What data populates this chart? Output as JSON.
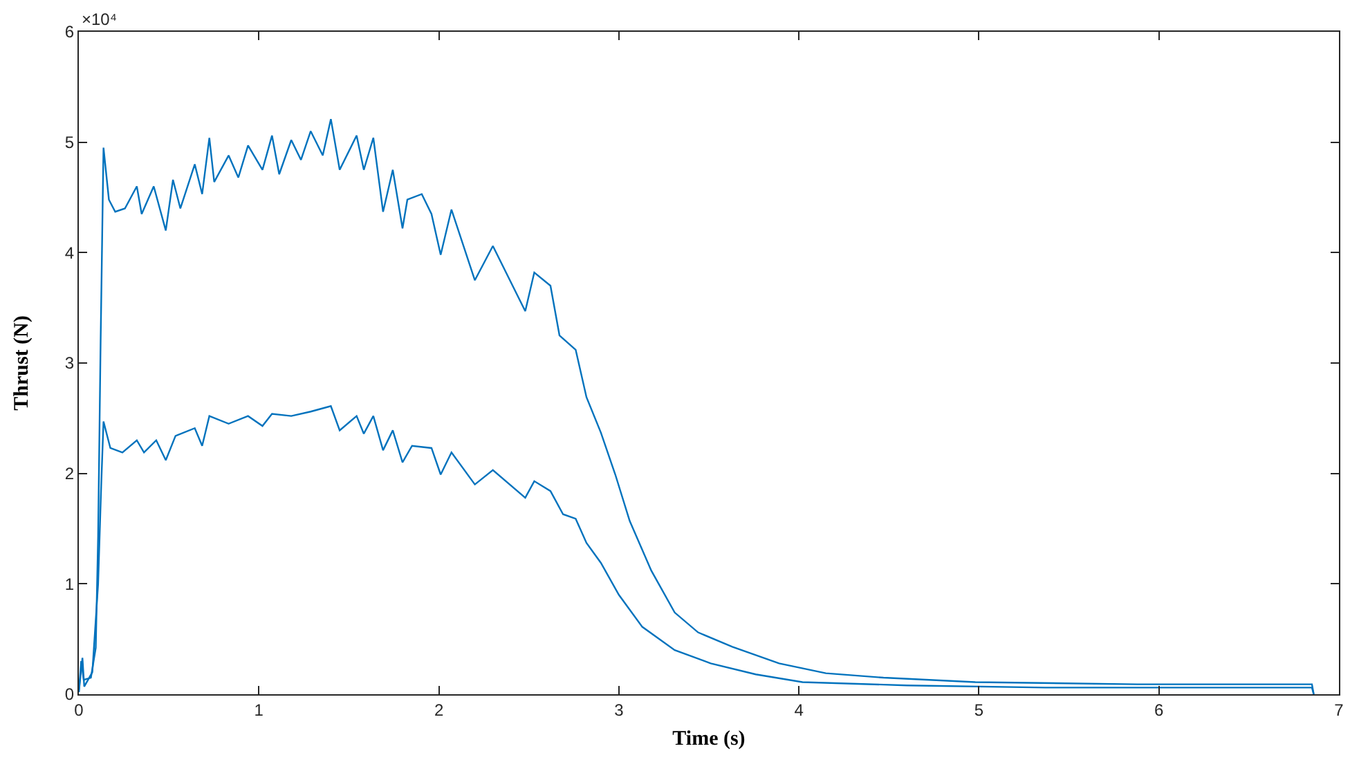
{
  "chart_data": {
    "type": "line",
    "xlabel": "Time (s)",
    "ylabel": "Thrust (N)",
    "annotations": [
      "×10⁴"
    ],
    "xlim": [
      0,
      7
    ],
    "xticks": [
      0,
      1,
      2,
      3,
      4,
      5,
      6,
      7
    ],
    "ylim": [
      0,
      6
    ],
    "yticks": [
      0,
      1,
      2,
      3,
      4,
      5,
      6
    ],
    "grid": false,
    "marker": "none",
    "line_style": "solid",
    "series": [
      {
        "color": "#0072bd",
        "x": [
          0,
          0.013,
          0.027,
          0.067,
          0.094,
          0.107,
          0.121,
          0.137,
          0.167,
          0.202,
          0.256,
          0.322,
          0.349,
          0.416,
          0.483,
          0.523,
          0.564,
          0.644,
          0.685,
          0.725,
          0.752,
          0.832,
          0.886,
          0.94,
          1.02,
          1.073,
          1.113,
          1.18,
          1.234,
          1.288,
          1.355,
          1.4,
          1.449,
          1.543,
          1.583,
          1.636,
          1.69,
          1.744,
          1.798,
          1.825,
          1.905,
          1.959,
          2.01,
          2.07,
          2.2,
          2.3,
          2.48,
          2.53,
          2.62,
          2.67,
          2.76,
          2.82,
          2.9,
          2.98,
          3.06,
          3.18,
          3.31,
          3.44,
          3.63,
          3.89,
          4.15,
          4.47,
          4.98,
          5.88,
          6.85,
          6.86
        ],
        "values": [
          0.02,
          0.3,
          0.13,
          0.15,
          0.42,
          1.43,
          3.2,
          4.95,
          4.48,
          4.37,
          4.4,
          4.6,
          4.35,
          4.6,
          4.2,
          4.66,
          4.4,
          4.8,
          4.53,
          5.04,
          4.64,
          4.88,
          4.68,
          4.97,
          4.75,
          5.06,
          4.71,
          5.02,
          4.84,
          5.1,
          4.88,
          5.21,
          4.75,
          5.06,
          4.75,
          5.04,
          4.37,
          4.75,
          4.22,
          4.48,
          4.53,
          4.35,
          3.98,
          4.39,
          3.75,
          4.06,
          3.47,
          3.82,
          3.7,
          3.25,
          3.12,
          2.69,
          2.37,
          1.99,
          1.57,
          1.12,
          0.74,
          0.56,
          0.43,
          0.28,
          0.19,
          0.15,
          0.11,
          0.09,
          0.09,
          0
        ]
      },
      {
        "color": "#0072bd",
        "x": [
          0,
          0.02,
          0.03,
          0.075,
          0.107,
          0.124,
          0.137,
          0.175,
          0.242,
          0.322,
          0.362,
          0.43,
          0.483,
          0.537,
          0.644,
          0.685,
          0.725,
          0.832,
          0.94,
          1.02,
          1.073,
          1.18,
          1.288,
          1.4,
          1.449,
          1.543,
          1.583,
          1.636,
          1.69,
          1.744,
          1.798,
          1.851,
          1.959,
          2.01,
          2.07,
          2.2,
          2.3,
          2.48,
          2.53,
          2.62,
          2.69,
          2.76,
          2.82,
          2.9,
          3.0,
          3.13,
          3.31,
          3.51,
          3.76,
          4.02,
          4.6,
          5.37,
          6.85,
          6.86
        ],
        "values": [
          0.02,
          0.33,
          0.07,
          0.2,
          1.0,
          1.88,
          2.47,
          2.23,
          2.19,
          2.3,
          2.19,
          2.3,
          2.12,
          2.34,
          2.41,
          2.25,
          2.52,
          2.45,
          2.52,
          2.43,
          2.54,
          2.52,
          2.56,
          2.61,
          2.39,
          2.52,
          2.36,
          2.52,
          2.21,
          2.39,
          2.1,
          2.25,
          2.23,
          1.99,
          2.19,
          1.9,
          2.03,
          1.78,
          1.93,
          1.84,
          1.63,
          1.59,
          1.37,
          1.19,
          0.9,
          0.61,
          0.4,
          0.28,
          0.18,
          0.11,
          0.08,
          0.06,
          0.06,
          0
        ]
      }
    ]
  }
}
